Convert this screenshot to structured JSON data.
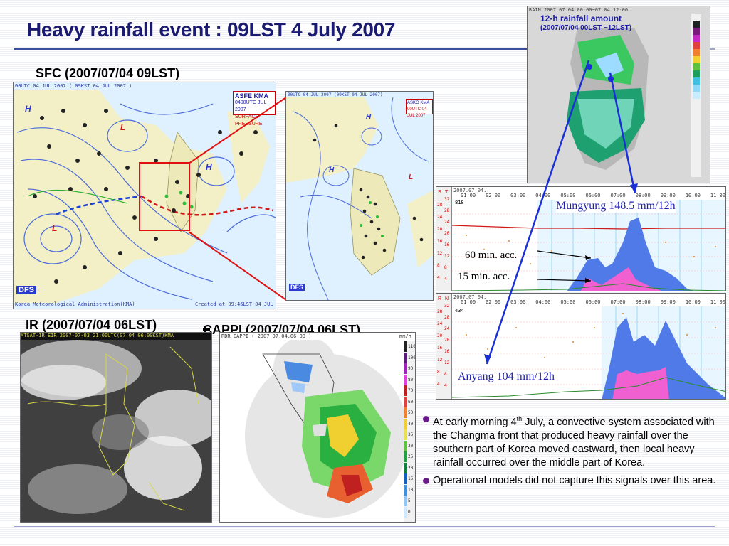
{
  "slide": {
    "title": "Heavy rainfall event : 09LST 4 July 2007"
  },
  "sfc": {
    "caption": "SFC (2007/07/04  09LST)",
    "map_header": "00UTC 04 JUL 2007 ( 09KST 04 JUL 2007 )",
    "asfe_line1": "ASFE   KMA",
    "asfe_line2": "0400UTC JUL 2007",
    "asfe_line3": "SURFACE PRESSURE",
    "footer_left": "Korea Meteorological Administration(KMA)",
    "footer_right": "Created at 09:46LST 04 JUL 2007",
    "dfs_label": "DFS",
    "high_label": "H",
    "low_label": "L"
  },
  "zoom": {
    "header": "00UTC 04 JUL 2007 (09KST 04 JUL 2007)",
    "badge_line1": "ASKO   KMA",
    "badge_line2": "00UTC 04 JUL 2007",
    "dfs_label": "DFS"
  },
  "rain_map": {
    "header": "RAIN    2007.07.04.00:00~07.04.12:00",
    "title_line1": "12-h rainfall amount",
    "title_line2": "(2007/07/04  00LST ~12LST)"
  },
  "ir": {
    "caption": "IR (2007/07/04  06LST)",
    "header": "MTSAT-1R EIR 2007-07-03 21:00UTC(07.04 06:00KST)KMA"
  },
  "cappi": {
    "caption": "CAPPI (2007/07/04  06LST)",
    "header": "RDR CAPPI    ( 2007.07.04.06:00 )",
    "unit": "mm/h",
    "scale_labels": [
      "110",
      "100",
      "90",
      "80",
      "70",
      "60",
      "50",
      "40",
      "35",
      "30",
      "25",
      "20",
      "15",
      "10",
      "5",
      "0"
    ]
  },
  "ts_top": {
    "date": "2007.07.04.",
    "station": "818",
    "times": [
      "01:00",
      "02:00",
      "03:00",
      "04:00",
      "05:00",
      "06:00",
      "07:00",
      "08:00",
      "09:00",
      "10:00",
      "11:00"
    ],
    "left_axis": [
      "28",
      "24",
      "20",
      "16",
      "12",
      "8",
      "4"
    ],
    "right_axis": [
      "32",
      "28",
      "24",
      "20",
      "16",
      "12",
      "8",
      "4"
    ],
    "label": "Mungyung 148.5 mm/12h",
    "acc60_label": "60 min. acc.",
    "acc15_label": "15 min. acc.",
    "col_s": "S",
    "col_t": "T"
  },
  "ts_bottom": {
    "date": "2007.07.04.",
    "station": "434",
    "times": [
      "01:00",
      "02:00",
      "03:00",
      "04:00",
      "05:00",
      "06:00",
      "07:00",
      "08:00",
      "09:00",
      "10:00",
      "11:00"
    ],
    "left_axis": [
      "28",
      "24",
      "20",
      "16",
      "12",
      "8",
      "4"
    ],
    "right_axis": [
      "32",
      "28",
      "24",
      "20",
      "16",
      "12",
      "8",
      "4"
    ],
    "label": "Anyang 104 mm/12h",
    "col_r": "R",
    "col_n": "N"
  },
  "bullets": {
    "b1_pre": "At early morning 4",
    "b1_sup": "th",
    "b1_post": " July, a convective system associated with the Changma front that produced heavy rainfall over the southern part of Korea moved eastward, then local heavy rainfall occurred over the middle part of Korea.",
    "b2": "Operational models did not capture this signals over this area."
  },
  "colors": {
    "title": "#1a1a70",
    "rain_label": "#1f1fb0",
    "acc60": "#4f7ae8",
    "acc15": "#f060d0",
    "arrow": "#1a2fd8",
    "zoom_box": "#e01010",
    "bullet": "#6a1a8a"
  }
}
